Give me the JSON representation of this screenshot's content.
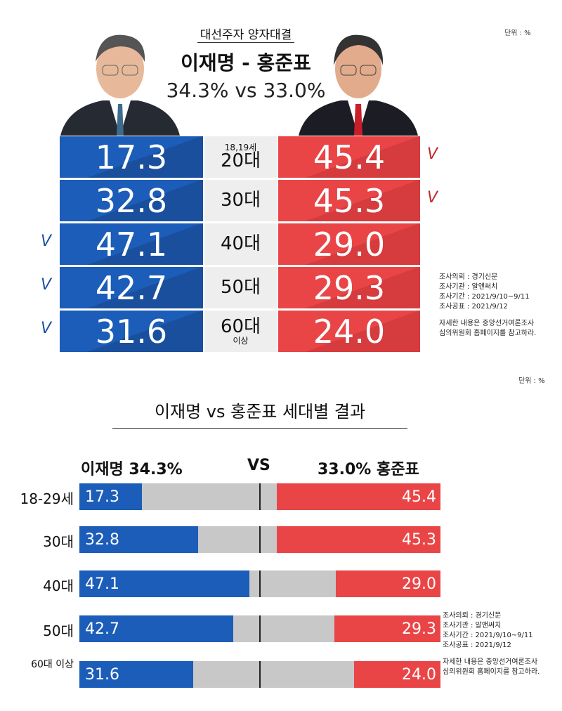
{
  "top": {
    "unit": "단위 : %",
    "title": "대선주자 양자대결",
    "matchup": "이재명 - 홍준표",
    "totals": "34.3% vs 33.0%",
    "rows": [
      {
        "age_small": "18,19세",
        "age": "20대",
        "lee": "17.3",
        "hong": "45.4",
        "check": "hong"
      },
      {
        "age_small": "",
        "age": "30대",
        "lee": "32.8",
        "hong": "45.3",
        "check": "hong"
      },
      {
        "age_small": "",
        "age": "40대",
        "lee": "47.1",
        "hong": "29.0",
        "check": "lee"
      },
      {
        "age_small": "",
        "age": "50대",
        "lee": "42.7",
        "hong": "29.3",
        "check": "lee"
      },
      {
        "age_small": "",
        "age": "60대",
        "age_sub": "이상",
        "lee": "31.6",
        "hong": "24.0",
        "check": "lee"
      }
    ],
    "check_mark": "V"
  },
  "notes": {
    "lines": [
      "조사의뢰 : 경기신문",
      "조사기관 : 알앤써치",
      "조사기간 : 2021/9/10~9/11",
      "조사공표 : 2021/9/12"
    ],
    "detail": [
      "자세한 내용은 중앙선거여론조사",
      "심의위원회 홈페이지를 참고하라."
    ]
  },
  "chart_data": {
    "type": "bar",
    "title": "이재명 vs 홍준표 세대별 결과",
    "unit": "단위 : %",
    "categories": [
      "18-29세",
      "30대",
      "40대",
      "50대",
      "60대 이상"
    ],
    "series": [
      {
        "name": "이재명",
        "total": "34.3%",
        "color": "#1b5db8",
        "values": [
          17.3,
          32.8,
          47.1,
          42.7,
          31.6
        ]
      },
      {
        "name": "홍준표",
        "total": "33.0%",
        "color": "#e94547",
        "values": [
          45.4,
          45.3,
          29.0,
          29.3,
          24.0
        ]
      }
    ],
    "header": {
      "left": "이재명 34.3%",
      "vs": "VS",
      "right": "33.0% 홍준표"
    },
    "xlim": [
      0,
      100
    ]
  }
}
